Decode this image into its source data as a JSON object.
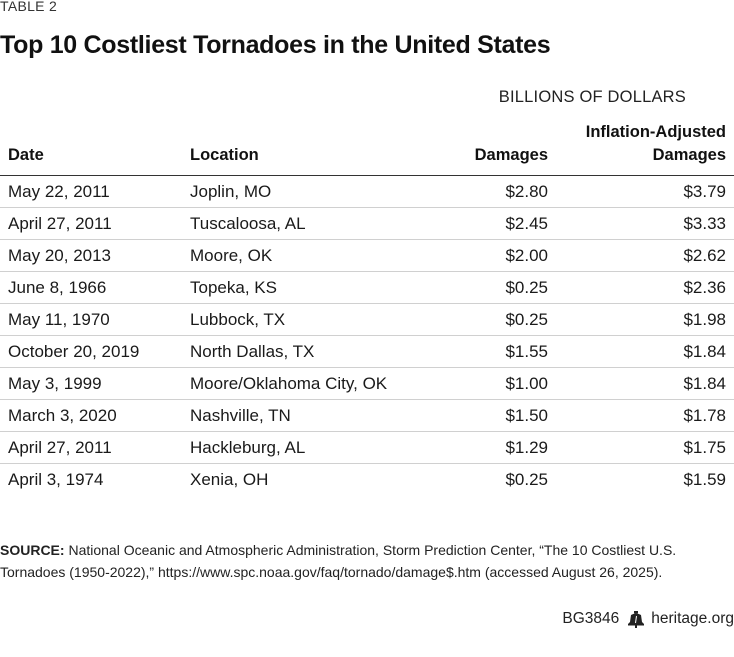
{
  "header": {
    "table_label": "TABLE 2",
    "title": "Top 10 Costliest Tornadoes in the United States",
    "units": "BILLIONS OF DOLLARS"
  },
  "table": {
    "columns": {
      "date": "Date",
      "location": "Location",
      "damages": "Damages",
      "adjusted_line1": "Inflation-Adjusted",
      "adjusted_line2": "Damages"
    },
    "rows": [
      {
        "date": "May 22, 2011",
        "location": "Joplin, MO",
        "damages": "$2.80",
        "adjusted": "$3.79"
      },
      {
        "date": "April 27, 2011",
        "location": "Tuscaloosa, AL",
        "damages": "$2.45",
        "adjusted": "$3.33"
      },
      {
        "date": "May 20, 2013",
        "location": "Moore, OK",
        "damages": "$2.00",
        "adjusted": "$2.62"
      },
      {
        "date": "June 8, 1966",
        "location": "Topeka, KS",
        "damages": "$0.25",
        "adjusted": "$2.36"
      },
      {
        "date": "May 11, 1970",
        "location": "Lubbock, TX",
        "damages": "$0.25",
        "adjusted": "$1.98"
      },
      {
        "date": "October 20, 2019",
        "location": "North Dallas, TX",
        "damages": "$1.55",
        "adjusted": "$1.84"
      },
      {
        "date": "May 3, 1999",
        "location": "Moore/Oklahoma City, OK",
        "damages": "$1.00",
        "adjusted": "$1.84"
      },
      {
        "date": "March 3, 2020",
        "location": "Nashville, TN",
        "damages": "$1.50",
        "adjusted": "$1.78"
      },
      {
        "date": "April 27, 2011",
        "location": "Hackleburg, AL",
        "damages": "$1.29",
        "adjusted": "$1.75"
      },
      {
        "date": "April 3, 1974",
        "location": "Xenia, OH",
        "damages": "$0.25",
        "adjusted": "$1.59"
      }
    ]
  },
  "source": {
    "label": "SOURCE:",
    "text": "National Oceanic and Atmospheric Administration, Storm Prediction Center, “The 10 Costliest U.S. Tornadoes (1950-2022),” https://www.spc.noaa.gov/faq/tornado/damage$.htm (accessed August 26, 2025)."
  },
  "footer": {
    "code": "BG3846",
    "icon": "liberty-bell-icon",
    "site": "heritage.org"
  },
  "colors": {
    "text": "#1a1a1a",
    "rule": "#333333",
    "row_divider": "#d0d0d0"
  }
}
